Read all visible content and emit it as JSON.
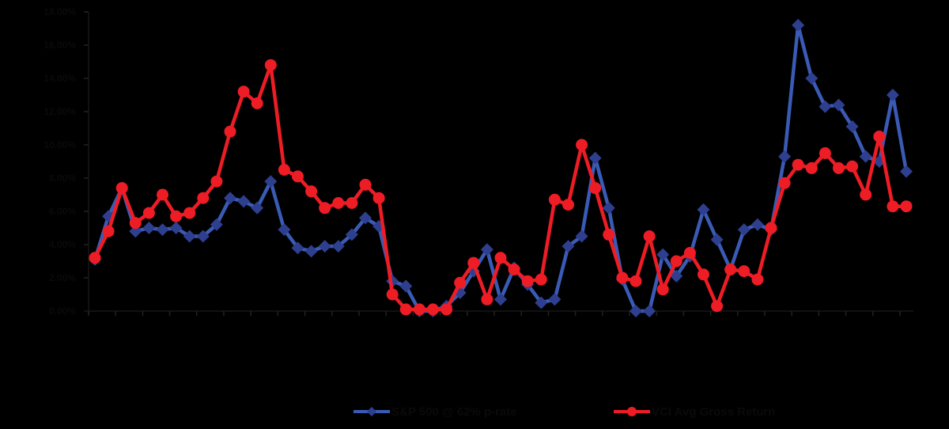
{
  "chart_data": {
    "type": "line",
    "title": "",
    "xlabel": "",
    "ylabel": "",
    "ylim": [
      0,
      18
    ],
    "yticks": [
      "0.00%",
      "2.00%",
      "4.00%",
      "6.00%",
      "8.00%",
      "10.00%",
      "12.00%",
      "14.00%",
      "16.00%",
      "18.00%"
    ],
    "grid": false,
    "legend_position": "bottom",
    "x_tick_labels_note": "Date labels rendered in black on black; illegible",
    "x_count": 61,
    "series": [
      {
        "name": "S&P 500 @ 62% p-rate",
        "color": "#2e3f8f",
        "line_color": "#3a5bb5",
        "marker": "diamond",
        "values": [
          3.1,
          5.7,
          7.4,
          4.8,
          5.0,
          4.9,
          5.0,
          4.5,
          4.5,
          5.2,
          6.8,
          6.6,
          6.2,
          7.8,
          4.9,
          3.8,
          3.6,
          3.9,
          3.9,
          4.6,
          5.6,
          5.1,
          1.8,
          1.5,
          0.0,
          0.0,
          0.3,
          1.1,
          2.4,
          3.7,
          0.7,
          2.6,
          1.6,
          0.5,
          0.7,
          3.9,
          4.5,
          9.2,
          6.2,
          1.9,
          0.0,
          0.0,
          3.4,
          2.1,
          3.3,
          6.1,
          4.3,
          2.5,
          4.9,
          5.2,
          4.9,
          9.3,
          17.2,
          14.0,
          12.3,
          12.4,
          11.1,
          9.3,
          9.0,
          13.0,
          8.4
        ]
      },
      {
        "name": "VCI Avg Gross Return",
        "color": "#ee1c25",
        "line_color": "#ee1c25",
        "marker": "circle",
        "values": [
          3.2,
          4.8,
          7.4,
          5.3,
          5.9,
          7.0,
          5.7,
          5.9,
          6.8,
          7.8,
          10.8,
          13.2,
          12.5,
          14.8,
          8.5,
          8.1,
          7.2,
          6.2,
          6.5,
          6.5,
          7.6,
          6.8,
          1.0,
          0.1,
          0.1,
          0.1,
          0.1,
          1.7,
          2.9,
          0.7,
          3.2,
          2.5,
          1.8,
          1.9,
          6.7,
          6.4,
          10.0,
          7.4,
          4.6,
          2.0,
          1.8,
          4.5,
          1.3,
          3.0,
          3.5,
          2.2,
          0.3,
          2.5,
          2.4,
          1.9,
          5.0,
          7.7,
          8.8,
          8.6,
          9.5,
          8.6,
          8.7,
          7.0,
          10.5,
          6.3,
          6.3
        ]
      }
    ]
  },
  "legend": {
    "items": [
      {
        "label": "S&P 500 @ 62% p-rate",
        "line_color": "#3a5bb5",
        "marker_color": "#2e3f8f",
        "marker": "diamond"
      },
      {
        "label": "VCI Avg Gross Return",
        "line_color": "#ee1c25",
        "marker_color": "#ee1c25",
        "marker": "circle"
      }
    ]
  }
}
